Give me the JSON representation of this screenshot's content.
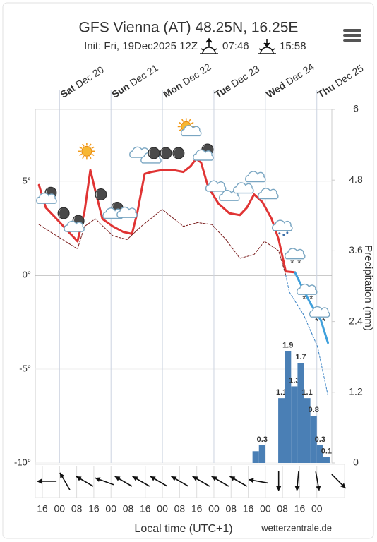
{
  "chart_data": {
    "type": "meteogram",
    "title": "GFS Vienna (AT) 48.25N, 16.25E",
    "subtitle": "Init: Fri, 19Dec2025 12Z",
    "sunrise": "07:46",
    "sunset": "15:58",
    "xlabel": "Local time (UTC+1)",
    "y2label": "Precipitation (mm)",
    "credit": "wetterzentrale.de",
    "xlim": [
      12.7,
      151
    ],
    "xticks": [
      {
        "value": 16,
        "label": "16"
      },
      {
        "value": 24,
        "label": "00"
      },
      {
        "value": 32,
        "label": "08"
      },
      {
        "value": 40,
        "label": "16"
      },
      {
        "value": 48,
        "label": "00"
      },
      {
        "value": 56,
        "label": "08"
      },
      {
        "value": 64,
        "label": "16"
      },
      {
        "value": 72,
        "label": "00"
      },
      {
        "value": 80,
        "label": "08"
      },
      {
        "value": 88,
        "label": "16"
      },
      {
        "value": 96,
        "label": "00"
      },
      {
        "value": 104,
        "label": "08"
      },
      {
        "value": 112,
        "label": "16"
      },
      {
        "value": 120,
        "label": "00"
      },
      {
        "value": 128,
        "label": "08"
      },
      {
        "value": 136,
        "label": "16"
      },
      {
        "value": 144,
        "label": "00"
      }
    ],
    "day_labels": [
      {
        "value": 24,
        "day": "Sat",
        "date": "Dec 20"
      },
      {
        "value": 48,
        "day": "Sun",
        "date": "Dec 21"
      },
      {
        "value": 72,
        "day": "Mon",
        "date": "Dec 22"
      },
      {
        "value": 96,
        "day": "Tue",
        "date": "Dec 23"
      },
      {
        "value": 120,
        "day": "Wed",
        "date": "Dec 24"
      },
      {
        "value": 144,
        "day": "Thu",
        "date": "Dec 25"
      }
    ],
    "ylim": [
      -10,
      8.83
    ],
    "yticks": [
      {
        "value": -10,
        "label": "-10°"
      },
      {
        "value": -5,
        "label": "-5°"
      },
      {
        "value": 0,
        "label": "0°"
      },
      {
        "value": 5,
        "label": "5°"
      }
    ],
    "y2lim": [
      0,
      6
    ],
    "y2ticks": [
      0,
      1.2,
      2.4,
      3.6,
      4.8,
      6
    ],
    "grid": true,
    "series": [
      {
        "color": "#e03434",
        "style": "solid",
        "x": [
          14.4,
          17.6,
          22.6,
          27.5,
          32.4,
          35.7,
          38.4,
          40.7,
          44,
          48.9,
          53.8,
          57.8,
          60.4,
          63.7,
          67,
          71.9,
          76.9,
          81.8,
          85.1,
          87.7,
          90,
          93.3,
          98.2,
          103.2,
          108.1,
          111.4,
          114.7,
          118.6,
          122.9,
          126.2,
          129.5,
          133.8,
          136.1,
          141,
          145.9,
          149.2
        ],
        "values": [
          4.8,
          3.6,
          3.0,
          2.4,
          1.8,
          3.4,
          5.6,
          4.5,
          3.0,
          2.6,
          2.3,
          2.2,
          3.4,
          5.4,
          5.5,
          5.6,
          5.6,
          5.5,
          5.8,
          6.2,
          6.0,
          4.7,
          3.8,
          3.3,
          3.2,
          3.6,
          4.3,
          3.9,
          3.0,
          1.9,
          0.2,
          0.15,
          null,
          null,
          null,
          null
        ]
      },
      {
        "color": "#3fa0dc",
        "style": "solid",
        "x": [
          14.4,
          17.6,
          22.6,
          27.5,
          32.4,
          35.7,
          38.4,
          40.7,
          44,
          48.9,
          53.8,
          57.8,
          60.4,
          63.7,
          67,
          71.9,
          76.9,
          81.8,
          85.1,
          87.7,
          90,
          93.3,
          98.2,
          103.2,
          108.1,
          111.4,
          114.7,
          118.6,
          122.9,
          126.2,
          129.5,
          133.8,
          136.1,
          141,
          145.9,
          149.2
        ],
        "values": [
          null,
          null,
          null,
          null,
          null,
          null,
          null,
          null,
          null,
          null,
          null,
          null,
          null,
          null,
          null,
          null,
          null,
          null,
          null,
          null,
          null,
          null,
          null,
          null,
          null,
          null,
          null,
          null,
          null,
          null,
          null,
          0.15,
          -0.4,
          -1.5,
          -2.4,
          -3.6
        ]
      },
      {
        "color": "#7a1c1c",
        "style": "dashed",
        "x": [
          14.4,
          22.6,
          32.4,
          35.7,
          40.7,
          48.9,
          55.5,
          62.1,
          71.9,
          81.8,
          88.4,
          95,
          101.6,
          108.1,
          114.7,
          119.6,
          126.2,
          129.5
        ],
        "values": [
          2.7,
          2.1,
          1.4,
          2.6,
          3.0,
          2.1,
          1.9,
          2.6,
          3.5,
          2.6,
          2.8,
          2.7,
          1.9,
          0.9,
          1.1,
          1.8,
          1.3,
          0.0
        ]
      },
      {
        "color": "#3a82c4",
        "style": "dashed",
        "x": [
          129.5,
          131.2,
          137.8,
          144.3,
          149.2
        ],
        "values": [
          0.0,
          -0.9,
          -2.1,
          -3.8,
          -6.4
        ]
      }
    ],
    "precipitation": {
      "axis": "y2",
      "color": "#4a7fb5",
      "starts": [
        114,
        117,
        126,
        129,
        132,
        135,
        138,
        141,
        144,
        147
      ],
      "ends": [
        117,
        120,
        129,
        132,
        135,
        138,
        141,
        144,
        147,
        150
      ],
      "values": [
        0.2,
        0.3,
        1.1,
        1.9,
        1.3,
        1.7,
        1.1,
        0.8,
        0.3,
        0.1
      ],
      "value_labels": [
        null,
        "0.3",
        "1.1",
        "1.9",
        "1.3",
        "1.7",
        "1.1",
        "0.8",
        "0.3",
        "0.1"
      ]
    },
    "symbols": {
      "x": [
        18.6,
        25.9,
        31.5,
        36.7,
        43.3,
        49.6,
        55.5,
        61.4,
        66.7,
        68,
        73.6,
        79.5,
        84.4,
        91.7,
        96.9,
        103.2,
        109.8,
        115.4,
        121.3,
        127.9,
        133.8,
        139.4,
        145.3
      ],
      "values": [
        4.2,
        3.3,
        2.7,
        6.6,
        4.3,
        3.4,
        3.3,
        6.5,
        6.2,
        6.5,
        6.5,
        6.5,
        7.8,
        6.5,
        4.7,
        4.2,
        4.6,
        5.2,
        4.3,
        2.6,
        1.1,
        -0.8,
        -2.0
      ],
      "kinds": [
        "moon-cloud",
        "moon",
        "moon-cloud",
        "sun",
        "moon",
        "moon-cloud",
        "cloud",
        "cloud",
        "cloud",
        "moon",
        "moon",
        "moon",
        "sun-cloud",
        "moon-cloud",
        "cloud",
        "cloud",
        "cloud",
        "cloud",
        "cloud",
        "cloud-rain",
        "cloud-snow",
        "cloud-snow",
        "cloud-snow"
      ]
    },
    "wind": {
      "x": [
        18,
        26.5,
        35.7,
        44.9,
        53.8,
        62,
        70.3,
        80.1,
        90,
        98.9,
        107.4,
        116.7,
        126.2,
        135.1,
        144.3,
        154.2
      ],
      "directions": [
        270,
        330,
        300,
        290,
        300,
        300,
        300,
        300,
        300,
        300,
        300,
        280,
        180,
        185,
        170,
        135
      ]
    }
  }
}
